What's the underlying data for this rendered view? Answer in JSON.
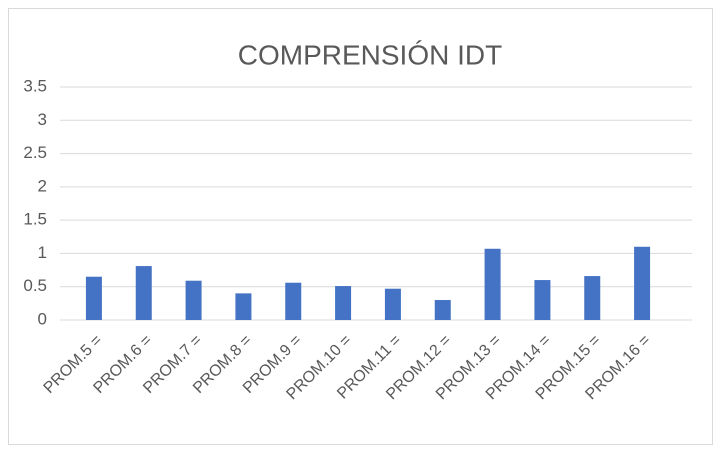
{
  "chart_data": {
    "type": "bar",
    "title": "COMPRENSIÓN IDT",
    "categories": [
      "PROM.5 =",
      "PROM.6 =",
      "PROM.7 =",
      "PROM.8 =",
      "PROM.9 =",
      "PROM.10 =",
      "PROM.11 =",
      "PROM.12 =",
      "PROM.13 =",
      "PROM.14 =",
      "PROM.15 =",
      "PROM.16 ="
    ],
    "values": [
      0.65,
      0.81,
      0.59,
      0.4,
      0.56,
      0.51,
      0.47,
      0.3,
      1.07,
      0.6,
      0.66,
      1.1
    ],
    "color": "#4472c4",
    "ylim": [
      0,
      3.5
    ],
    "yticks": [
      0,
      0.5,
      1,
      1.5,
      2,
      2.5,
      3,
      3.5
    ],
    "grid": true
  }
}
